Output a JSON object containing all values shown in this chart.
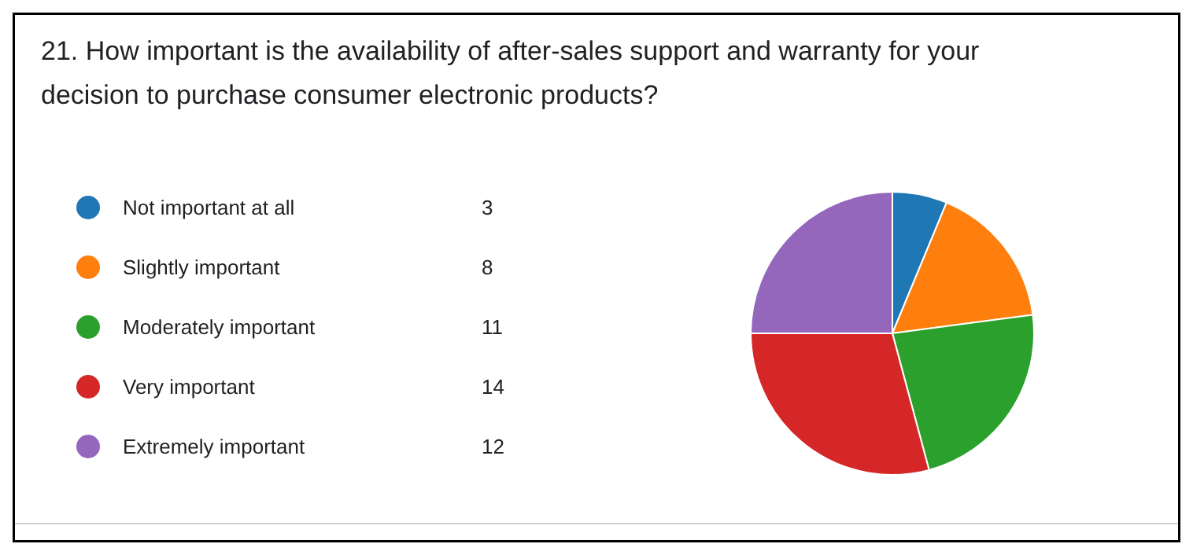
{
  "chart_data": {
    "type": "pie",
    "title": "21.  How important is the availability of after-sales support and warranty for your decision to purchase consumer electronic products?",
    "categories": [
      "Not important at all",
      "Slightly important",
      "Moderately important",
      "Very important",
      "Extremely important"
    ],
    "values": [
      3,
      8,
      11,
      14,
      12
    ],
    "colors": [
      "#1f77b4",
      "#ff7f0e",
      "#2ca02c",
      "#d62728",
      "#9467bd"
    ],
    "legend": "left",
    "data_labels": true
  }
}
